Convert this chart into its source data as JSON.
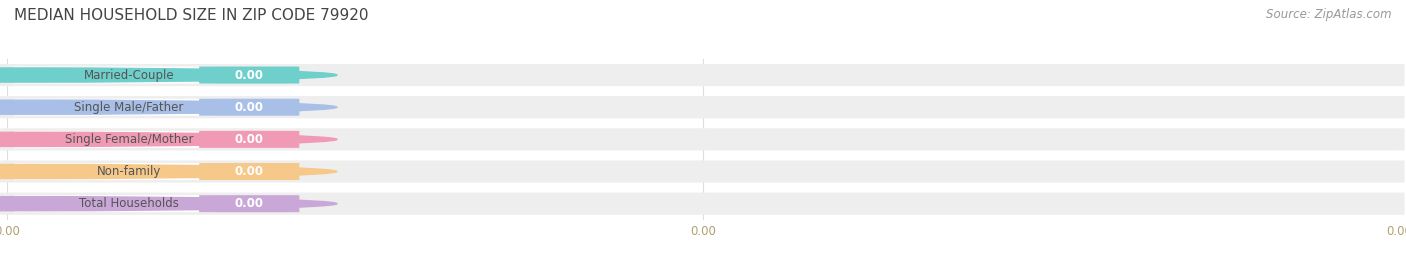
{
  "title": "MEDIAN HOUSEHOLD SIZE IN ZIP CODE 79920",
  "source_text": "Source: ZipAtlas.com",
  "categories": [
    "Married-Couple",
    "Single Male/Father",
    "Single Female/Mother",
    "Non-family",
    "Total Households"
  ],
  "values": [
    0.0,
    0.0,
    0.0,
    0.0,
    0.0
  ],
  "bar_colors": [
    "#6ecfcb",
    "#a8bfe8",
    "#f09ab5",
    "#f6c88a",
    "#c9a8d8"
  ],
  "bg_bar_color": "#eeeeee",
  "white_pill_color": "#ffffff",
  "title_fontsize": 11,
  "source_fontsize": 8.5,
  "cat_label_fontsize": 8.5,
  "val_label_fontsize": 8.5,
  "tick_fontsize": 8.5,
  "background_color": "#ffffff",
  "tick_color": "#b0a070",
  "grid_color": "#dddddd",
  "source_color": "#999999",
  "cat_label_color": "#555555",
  "title_color": "#444444"
}
